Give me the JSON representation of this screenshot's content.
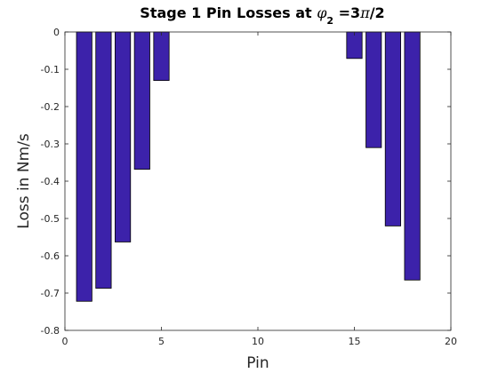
{
  "chart_data": {
    "type": "bar",
    "title": {
      "prefix": "Stage 1 Pin Losses at ",
      "symbol": "φ",
      "subscript": "2",
      "suffix_eq": " =3",
      "pi": "π",
      "suffix_end": "/2"
    },
    "xlabel": "Pin",
    "ylabel": "Loss in Nm/s",
    "xlim": [
      0,
      20
    ],
    "ylim": [
      -0.8,
      0
    ],
    "xticks": [
      0,
      5,
      10,
      15,
      20
    ],
    "yticks": [
      0,
      -0.1,
      -0.2,
      -0.3,
      -0.4,
      -0.5,
      -0.6,
      -0.7,
      -0.8
    ],
    "ytick_labels": [
      "0",
      "-0.1",
      "-0.2",
      "-0.3",
      "-0.4",
      "-0.5",
      "-0.6",
      "-0.7",
      "-0.8"
    ],
    "bar_width": 0.8,
    "bar_color": "#3c22aa",
    "grid": false,
    "x": [
      1,
      2,
      3,
      4,
      5,
      15,
      16,
      17,
      18
    ],
    "values": [
      -0.722,
      -0.687,
      -0.563,
      -0.368,
      -0.13,
      -0.071,
      -0.31,
      -0.52,
      -0.665
    ]
  }
}
